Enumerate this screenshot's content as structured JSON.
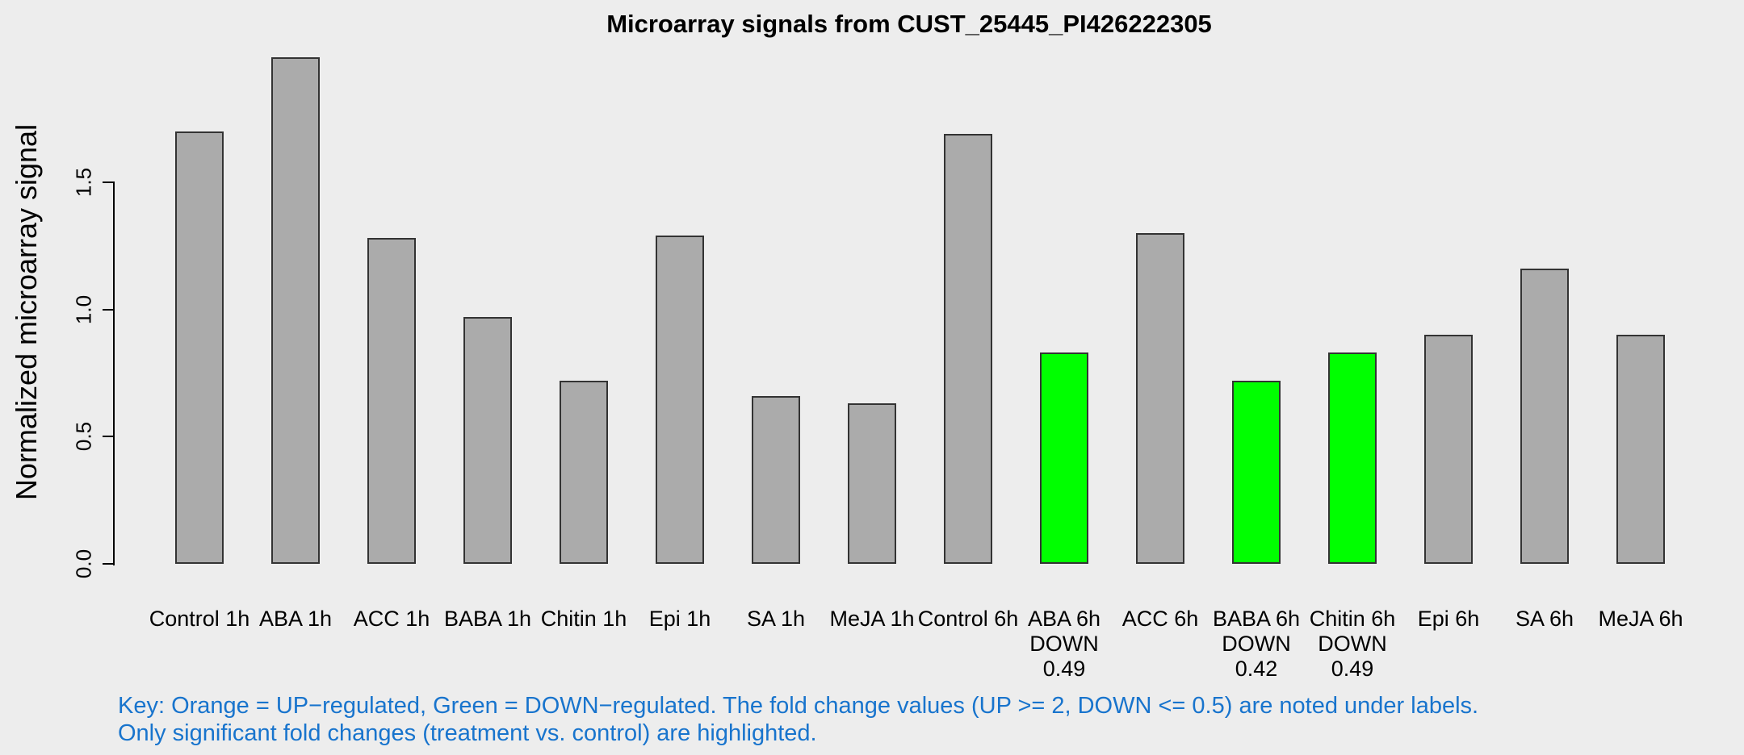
{
  "chart_data": {
    "type": "bar",
    "title": "Microarray signals from CUST_25445_PI426222305",
    "xlabel": "",
    "ylabel": "Normalized microarray signal",
    "yticks": [
      "0.0",
      "0.5",
      "1.0",
      "1.5"
    ],
    "ylim": [
      0,
      2.05
    ],
    "grid": false,
    "legend_position": "none",
    "categories": [
      "Control 1h",
      "ABA 1h",
      "ACC 1h",
      "BABA 1h",
      "Chitin 1h",
      "Epi 1h",
      "SA 1h",
      "MeJA 1h",
      "Control 6h",
      "ABA 6h",
      "ACC 6h",
      "BABA 6h",
      "Chitin 6h",
      "Epi 6h",
      "SA 6h",
      "MeJA 6h"
    ],
    "values": [
      1.7,
      1.99,
      1.28,
      0.97,
      0.72,
      1.29,
      0.66,
      0.63,
      1.69,
      0.83,
      1.3,
      0.72,
      0.83,
      0.9,
      1.16,
      0.9
    ],
    "bar_states": [
      "normal",
      "normal",
      "normal",
      "normal",
      "normal",
      "normal",
      "normal",
      "normal",
      "normal",
      "down",
      "normal",
      "down",
      "down",
      "normal",
      "normal",
      "normal"
    ],
    "annotations": [
      {
        "category": "ABA 6h",
        "lines": [
          "DOWN",
          "0.49"
        ]
      },
      {
        "category": "BABA 6h",
        "lines": [
          "DOWN",
          "0.42"
        ]
      },
      {
        "category": "Chitin 6h",
        "lines": [
          "DOWN",
          "0.49"
        ]
      }
    ]
  },
  "key": {
    "line1": "Key: Orange = UP−regulated, Green = DOWN−regulated. The fold change values (UP >= 2, DOWN <= 0.5) are noted under labels.",
    "line2": "Only significant fold changes (treatment vs. control) are highlighted."
  },
  "colors": {
    "background": "#EDEDED",
    "bar_fill": "#ABABAB",
    "bar_down_fill": "#00FF00",
    "bar_border": "#333333",
    "axis": "#000000",
    "text": "#000000",
    "key_text": "#1874CD"
  }
}
